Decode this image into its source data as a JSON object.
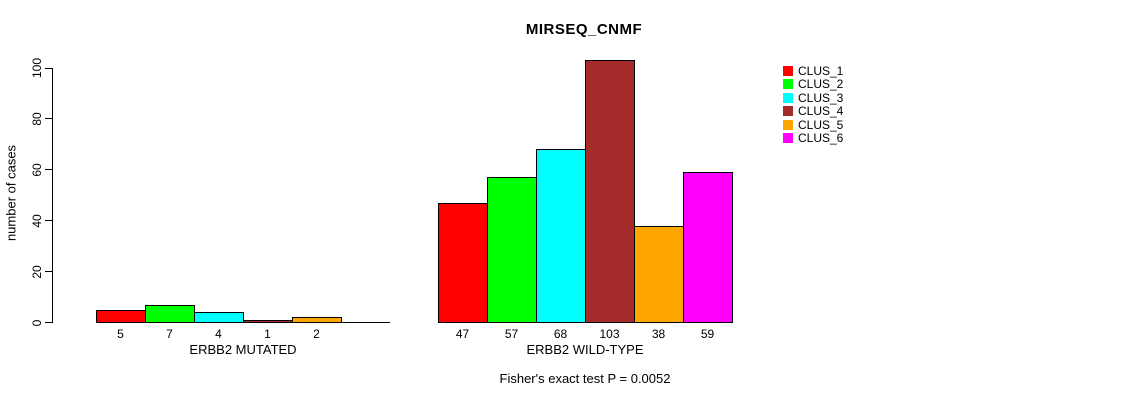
{
  "chart_data": {
    "type": "bar",
    "title": "MIRSEQ_CNMF",
    "ylabel": "number of cases",
    "xlabel": "",
    "footnote": "Fisher's exact test P = 0.0052",
    "ylim": [
      0,
      100
    ],
    "y_ticks": [
      0,
      20,
      40,
      60,
      80,
      100
    ],
    "grid": false,
    "legend_position": "right",
    "legend_entries": [
      "CLUS_1",
      "CLUS_2",
      "CLUS_3",
      "CLUS_4",
      "CLUS_5",
      "CLUS_6"
    ],
    "colors": [
      "#ff0000",
      "#00ff00",
      "#00ffff",
      "#a52a2a",
      "#ffa500",
      "#ff00ff"
    ],
    "categories": [
      "ERBB2 MUTATED",
      "ERBB2 WILD-TYPE"
    ],
    "series": [
      {
        "name": "CLUS_1",
        "values": [
          5,
          47
        ]
      },
      {
        "name": "CLUS_2",
        "values": [
          7,
          57
        ]
      },
      {
        "name": "CLUS_3",
        "values": [
          4,
          68
        ]
      },
      {
        "name": "CLUS_4",
        "values": [
          1,
          103
        ]
      },
      {
        "name": "CLUS_5",
        "values": [
          2,
          38
        ]
      },
      {
        "name": "CLUS_6",
        "values": [
          0,
          59
        ]
      }
    ],
    "groups": [
      {
        "label": "ERBB2 MUTATED",
        "bar_labels": [
          "5",
          "7",
          "4",
          "1",
          "2",
          ""
        ]
      },
      {
        "label": "ERBB2 WILD-TYPE",
        "bar_labels": [
          "47",
          "57",
          "68",
          "103",
          "38",
          "59"
        ]
      }
    ]
  }
}
